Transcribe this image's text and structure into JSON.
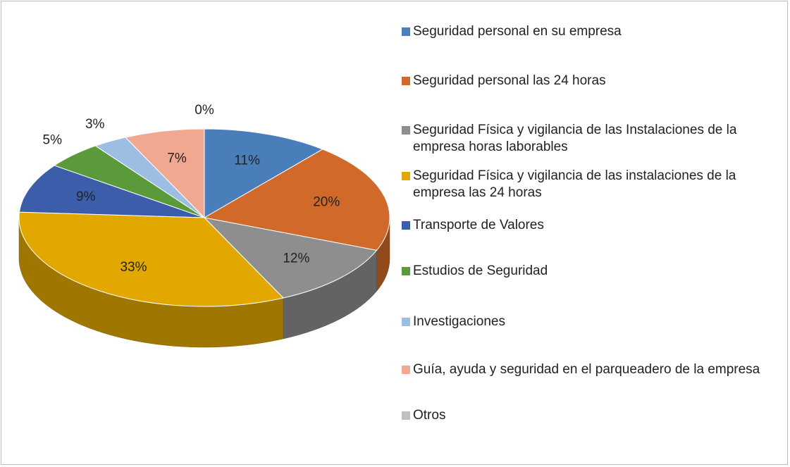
{
  "chart_data": {
    "type": "pie3d",
    "categories": [
      "Seguridad personal en su empresa",
      "Seguridad personal las 24 horas",
      "Seguridad Física y vigilancia de las Instalaciones de la empresa horas laborables",
      "Seguridad Física y vigilancia de las instalaciones de la empresa las 24 horas",
      "Transporte de Valores",
      "Estudios de Seguridad",
      "Investigaciones",
      "Guía, ayuda y seguridad en el parqueadero de la empresa",
      "Otros"
    ],
    "values": [
      11,
      20,
      12,
      33,
      9,
      5,
      3,
      7,
      0
    ],
    "value_labels": [
      "11%",
      "20%",
      "12%",
      "33%",
      "9%",
      "5%",
      "3%",
      "7%",
      "0%"
    ],
    "colors": [
      "#4a7ebb",
      "#d0692a",
      "#8e8e8e",
      "#e3a800",
      "#3b5daa",
      "#5a9a3a",
      "#9dbde3",
      "#f0a890",
      "#c0c0c0"
    ],
    "legend": "right"
  }
}
